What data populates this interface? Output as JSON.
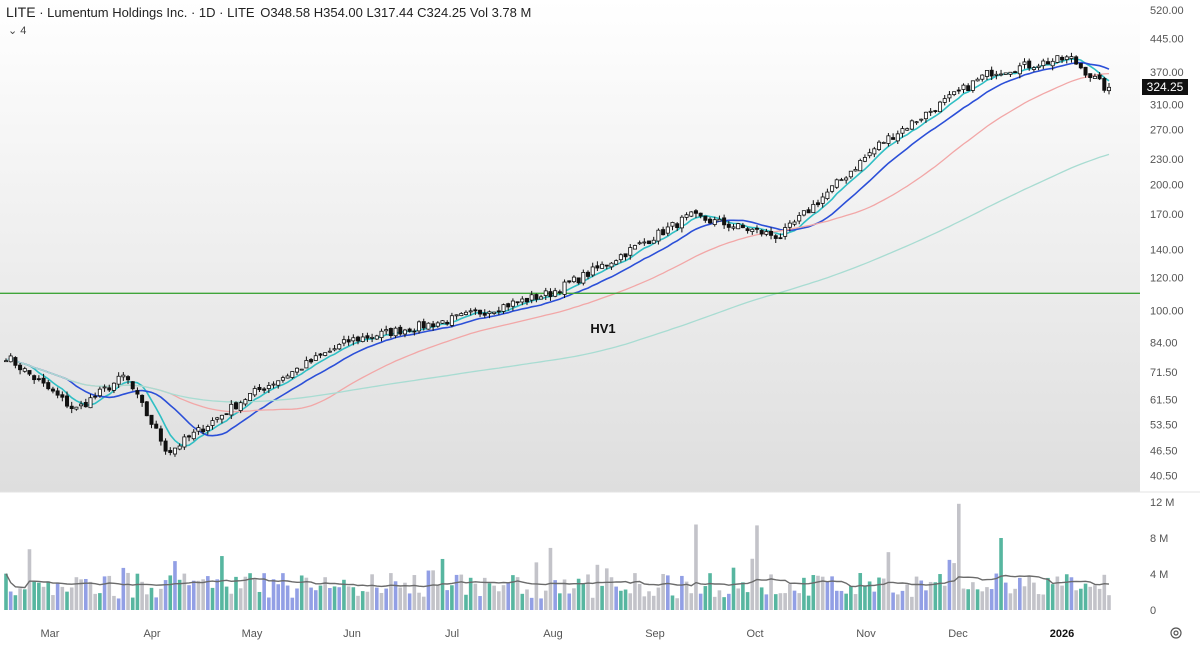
{
  "header": {
    "symbol": "LITE",
    "name": "Lumentum Holdings Inc.",
    "interval": "1D",
    "exchange": "LITE",
    "open": "O348.58",
    "high": "H354.00",
    "low": "L317.44",
    "close": "C324.25",
    "volume": "Vol 3.78 M",
    "indicator_count": "4"
  },
  "chart_data": [
    {
      "type": "candlestick",
      "title": "LITE · Lumentum Holdings Inc. · 1D · LITE",
      "y_scale": "log",
      "ylim": [
        37,
        520
      ],
      "y_ticks": [
        "40.50",
        "46.50",
        "53.50",
        "61.50",
        "71.50",
        "84.00",
        "100.00",
        "120.00",
        "140.00",
        "170.00",
        "200.00",
        "230.00",
        "270.00",
        "310.00",
        "370.00",
        "445.00",
        "520.00"
      ],
      "x_ticks": [
        "Mar",
        "Apr",
        "May",
        "Jun",
        "Jul",
        "Aug",
        "Sep",
        "Oct",
        "Nov",
        "Dec",
        "2026"
      ],
      "last_price": "324.25",
      "horizontal_line": {
        "value": 110,
        "color": "#3fa53a",
        "label": "HV1"
      },
      "ohlc_last": {
        "open": 348.58,
        "high": 354.0,
        "low": 317.44,
        "close": 324.25
      },
      "series": [
        {
          "name": "fast MA",
          "color": "#2fbfc4"
        },
        {
          "name": "slow MA",
          "color": "#2b4fd8"
        },
        {
          "name": "medium MA",
          "color": "#f2a7a7"
        },
        {
          "name": "long MA",
          "color": "#a8dcd2"
        }
      ],
      "keypoints": [
        {
          "label": "start",
          "close": 80
        },
        {
          "label": "Mar low",
          "close": 58
        },
        {
          "label": "Mar high",
          "close": 70
        },
        {
          "label": "Apr low",
          "close": 46
        },
        {
          "label": "May",
          "close": 63
        },
        {
          "label": "Jun",
          "close": 85
        },
        {
          "label": "Jul",
          "close": 95
        },
        {
          "label": "Aug",
          "close": 110
        },
        {
          "label": "Aug high",
          "close": 125
        },
        {
          "label": "Sep",
          "close": 168
        },
        {
          "label": "Oct",
          "close": 150
        },
        {
          "label": "Nov",
          "close": 250
        },
        {
          "label": "Dec",
          "close": 370
        },
        {
          "label": "Jan",
          "close": 400
        },
        {
          "label": "last",
          "close": 324
        }
      ]
    },
    {
      "type": "bar",
      "title": "Volume",
      "ylim": [
        0,
        12
      ],
      "y_ticks": [
        "0",
        "4 M",
        "8 M",
        "12 M"
      ],
      "up_color": "#3aa98f",
      "down_color": "#7f8ee0",
      "neutral_color": "#b9b9bf",
      "ma_color": "#6b6b6b",
      "average_level": 3.2,
      "spikes_millions": [
        9.5,
        9.4,
        11.8,
        8.0
      ]
    }
  ]
}
